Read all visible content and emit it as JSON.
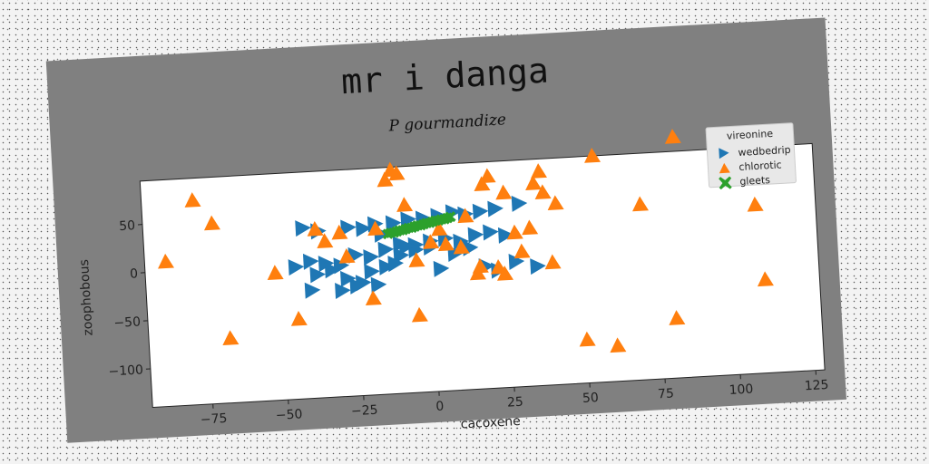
{
  "chart_data": {
    "type": "scatter",
    "title": "mr i danga",
    "subtitle": "P gourmandize",
    "xlabel": "cacoxene",
    "ylabel": "zoophobous",
    "xlim": [
      -95,
      128
    ],
    "ylim": [
      -140,
      95
    ],
    "xticks": [
      -75,
      -50,
      -25,
      0,
      25,
      50,
      75,
      100,
      125
    ],
    "xtick_labels": [
      "−75",
      "−50",
      "−25",
      "0",
      "25",
      "50",
      "75",
      "100",
      "125"
    ],
    "yticks": [
      -100,
      -50,
      0,
      50
    ],
    "ytick_labels": [
      "−100",
      "−50",
      "0",
      "50"
    ],
    "grid": false,
    "legend": {
      "title": "vireonine",
      "placement": "top-right",
      "entries": [
        "wedbedrip",
        "chlorotic",
        "gleets"
      ]
    },
    "series": [
      {
        "name": "wedbedrip",
        "marker": "triangle-right",
        "color": "#1f77b4",
        "points": [
          [
            -42,
            37
          ],
          [
            -37,
            33
          ],
          [
            -27,
            35
          ],
          [
            -22,
            33
          ],
          [
            -18,
            37
          ],
          [
            -16,
            26
          ],
          [
            -12,
            37
          ],
          [
            -7,
            40
          ],
          [
            -2,
            40
          ],
          [
            3,
            42
          ],
          [
            8,
            45
          ],
          [
            12,
            42
          ],
          [
            17,
            44
          ],
          [
            22,
            46
          ],
          [
            30,
            50
          ],
          [
            -40,
            2
          ],
          [
            -35,
            -1
          ],
          [
            -30,
            -4
          ],
          [
            -25,
            6
          ],
          [
            -20,
            3
          ],
          [
            -15,
            10
          ],
          [
            -10,
            15
          ],
          [
            -5,
            13
          ],
          [
            0,
            16
          ],
          [
            5,
            18
          ],
          [
            10,
            14
          ],
          [
            15,
            20
          ],
          [
            20,
            22
          ],
          [
            25,
            18
          ],
          [
            -45,
            -3
          ],
          [
            -38,
            -12
          ],
          [
            -33,
            -8
          ],
          [
            -28,
            -18
          ],
          [
            -23,
            -23
          ],
          [
            -20,
            -12
          ],
          [
            -15,
            -8
          ],
          [
            -10,
            3
          ],
          [
            -5,
            8
          ],
          [
            0,
            10
          ],
          [
            3,
            -13
          ],
          [
            8,
            2
          ],
          [
            13,
            7
          ],
          [
            18,
            -13
          ],
          [
            22,
            -18
          ],
          [
            28,
            -10
          ],
          [
            35,
            -16
          ],
          [
            -40,
            -28
          ],
          [
            -30,
            -30
          ],
          [
            -25,
            -26
          ],
          [
            -18,
            -26
          ],
          [
            -12,
            -5
          ],
          [
            -8,
            12
          ]
        ]
      },
      {
        "name": "chlorotic",
        "marker": "triangle-up",
        "color": "#ff7f0e",
        "points": [
          [
            -88,
            10
          ],
          [
            -78,
            72
          ],
          [
            -72,
            47
          ],
          [
            -68,
            -73
          ],
          [
            -52,
            -8
          ],
          [
            -45,
            -57
          ],
          [
            -38,
            35
          ],
          [
            -35,
            22
          ],
          [
            -30,
            30
          ],
          [
            -28,
            5
          ],
          [
            -20,
            -40
          ],
          [
            -18,
            32
          ],
          [
            -14,
            82
          ],
          [
            -12,
            92
          ],
          [
            -10,
            88
          ],
          [
            -8,
            55
          ],
          [
            -5,
            -3
          ],
          [
            -5,
            -60
          ],
          [
            0,
            15
          ],
          [
            3,
            28
          ],
          [
            5,
            12
          ],
          [
            10,
            8
          ],
          [
            12,
            40
          ],
          [
            15,
            -20
          ],
          [
            16,
            -13
          ],
          [
            18,
            72
          ],
          [
            20,
            80
          ],
          [
            22,
            -15
          ],
          [
            24,
            -22
          ],
          [
            25,
            62
          ],
          [
            28,
            20
          ],
          [
            30,
            0
          ],
          [
            33,
            24
          ],
          [
            35,
            70
          ],
          [
            37,
            82
          ],
          [
            38,
            60
          ],
          [
            40,
            -13
          ],
          [
            42,
            48
          ],
          [
            50,
            -95
          ],
          [
            55,
            95
          ],
          [
            60,
            -103
          ],
          [
            70,
            42
          ],
          [
            80,
            -78
          ],
          [
            82,
            110
          ],
          [
            105,
            100
          ],
          [
            108,
            35
          ],
          [
            110,
            -43
          ]
        ]
      },
      {
        "name": "gleets",
        "marker": "x-filled",
        "color": "#2ca02c",
        "points": [
          [
            -14,
            26
          ],
          [
            -13,
            27
          ],
          [
            -12,
            27
          ],
          [
            -11,
            28
          ],
          [
            -10,
            29
          ],
          [
            -9,
            29
          ],
          [
            -8,
            30
          ],
          [
            -7,
            31
          ],
          [
            -6,
            31
          ],
          [
            -5,
            32
          ],
          [
            -4,
            33
          ],
          [
            -3,
            33
          ],
          [
            -2,
            34
          ],
          [
            -1,
            35
          ],
          [
            0,
            35
          ],
          [
            1,
            36
          ],
          [
            2,
            37
          ],
          [
            3,
            37
          ],
          [
            4,
            38
          ],
          [
            5,
            38
          ],
          [
            6,
            39
          ],
          [
            7,
            40
          ]
        ]
      }
    ]
  }
}
